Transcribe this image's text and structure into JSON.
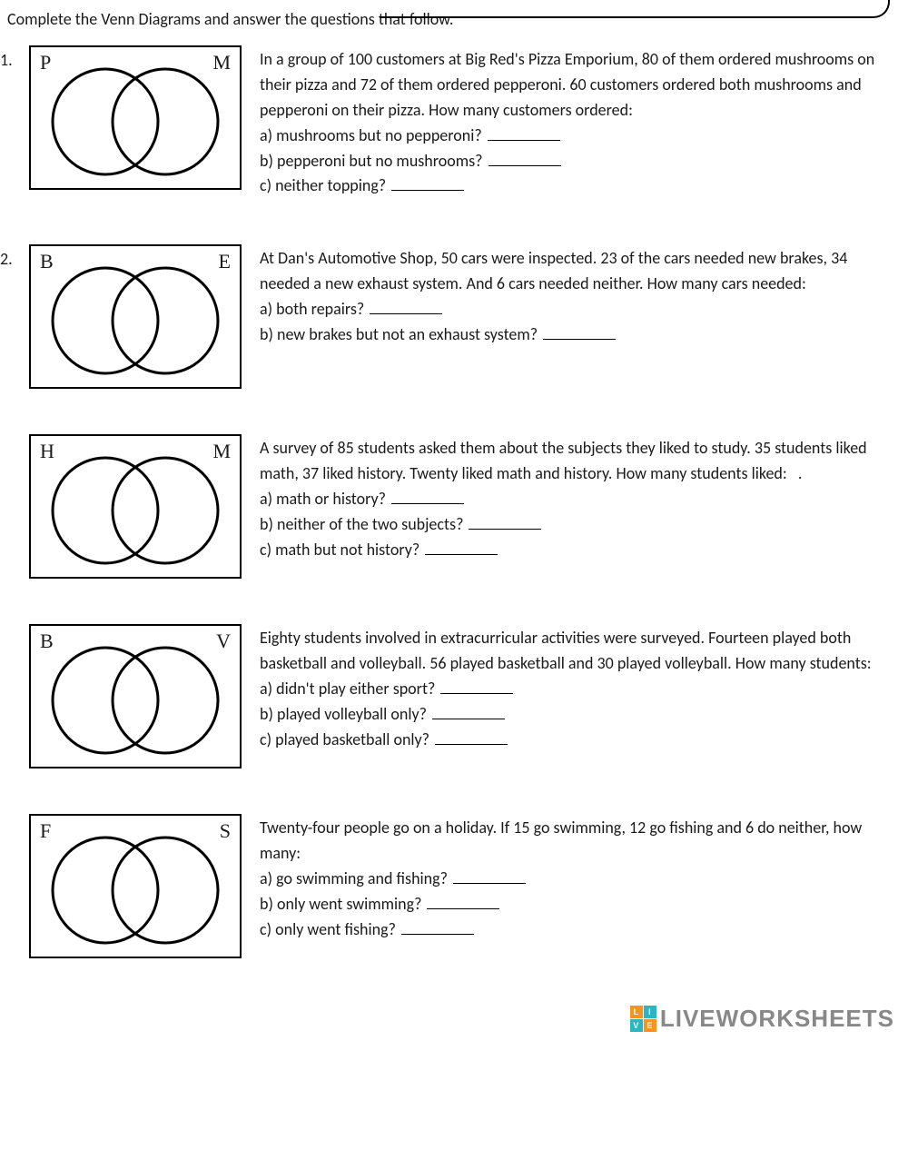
{
  "instruction": "Complete the Venn Diagrams and answer the questions that follow.",
  "problems": [
    {
      "num": "1.",
      "left": "P",
      "right": "M",
      "prompt": "In a group of 100 customers at Big Red's Pizza Emporium, 80 of them ordered mushrooms on their pizza and 72 of them ordered pepperoni. 60 customers ordered both mushrooms and pepperoni on their pizza. How many customers ordered:",
      "qa": "a) mushrooms but no pepperoni?",
      "qb": "b) pepperoni but no mushrooms?",
      "qc": "c) neither topping?"
    },
    {
      "num": "2.",
      "left": "B",
      "right": "E",
      "prompt": "At Dan's Automotive Shop, 50 cars were inspected. 23 of the cars needed new brakes, 34 needed a new exhaust system. And 6 cars needed neither. How many cars needed:",
      "qa": "a) both repairs?",
      "qb": "b) new brakes but not an exhaust system?",
      "qc": ""
    },
    {
      "num": "",
      "left": "H",
      "right": "M",
      "prompt": "A survey of 85 students asked them about the subjects they liked to study. 35 students liked math, 37 liked history. Twenty liked math and history. How many students liked:   .",
      "qa": "a) math or history?",
      "qb": "b) neither of the two subjects?",
      "qc": "c) math but not history?"
    },
    {
      "num": "",
      "left": "B",
      "right": "V",
      "prompt": "Eighty students involved in extracurricular activities were surveyed. Fourteen played both basketball and volleyball. 56 played basketball and 30 played volleyball. How many students:",
      "qa": "a) didn't play either sport?",
      "qb": "b) played volleyball only?",
      "qc": "c) played basketball only?"
    },
    {
      "num": "",
      "left": "F",
      "right": "S",
      "prompt": "Twenty-four people go on a holiday. If 15 go swimming, 12 go fishing and 6 do neither, how many:",
      "qa": "a) go swimming and fishing?",
      "qb": "b) only went swimming?",
      "qc": "c) only went fishing?"
    }
  ],
  "watermark": "LIVEWORKSHEETS",
  "badge": {
    "l": "L",
    "i": "I",
    "v": "V",
    "e": "E"
  },
  "colors": {
    "orange": "#f7941d",
    "teal": "#2bb6c4"
  }
}
